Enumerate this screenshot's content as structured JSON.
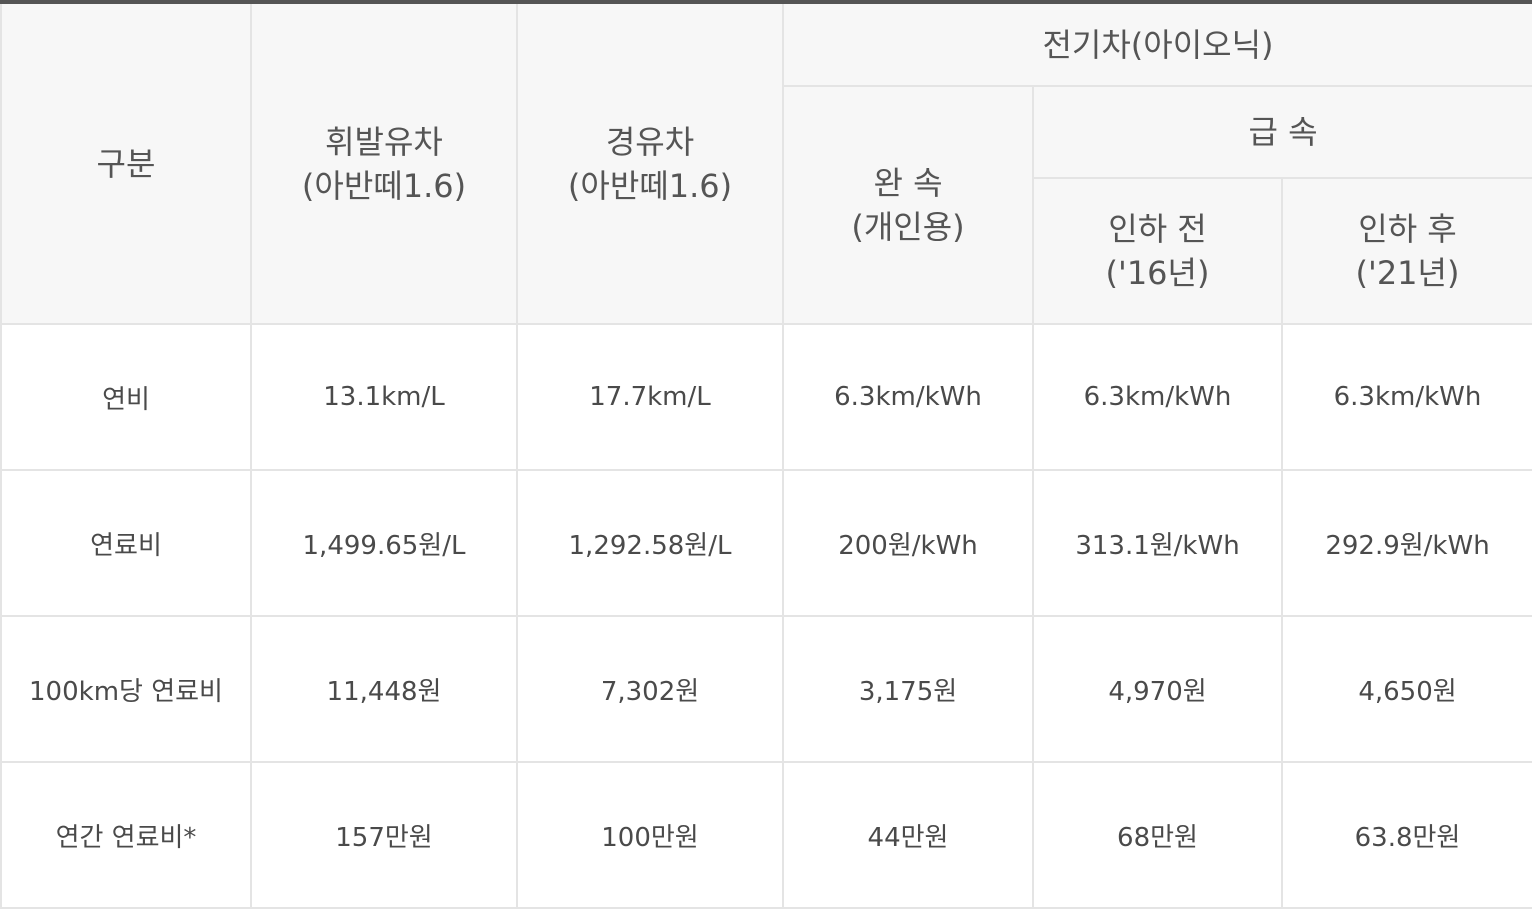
{
  "header": {
    "category": "구분",
    "gasoline": {
      "line1": "휘발유차",
      "line2": "(아반떼1.6)"
    },
    "diesel": {
      "line1": "경유차",
      "line2": "(아반떼1.6)"
    },
    "ev_group": "전기차(아이오닉)",
    "slow": {
      "line1": "완 속",
      "line2": "(개인용)"
    },
    "fast_group": "급 속",
    "fast_before": {
      "line1": "인하 전",
      "line2": "('16년)"
    },
    "fast_after": {
      "line1": "인하 후",
      "line2": "('21년)"
    }
  },
  "rows": [
    {
      "label": "연비",
      "values": [
        "13.1km/L",
        "17.7km/L",
        "6.3km/kWh",
        "6.3km/kWh",
        "6.3km/kWh"
      ]
    },
    {
      "label": "연료비",
      "values": [
        "1,499.65원/L",
        "1,292.58원/L",
        "200원/kWh",
        "313.1원/kWh",
        "292.9원/kWh"
      ]
    },
    {
      "label": "100km당 연료비",
      "values": [
        "11,448원",
        "7,302원",
        "3,175원",
        "4,970원",
        "4,650원"
      ]
    },
    {
      "label": "연간 연료비*",
      "values": [
        "157만원",
        "100만원",
        "44만원",
        "68만원",
        "63.8만원"
      ]
    }
  ]
}
